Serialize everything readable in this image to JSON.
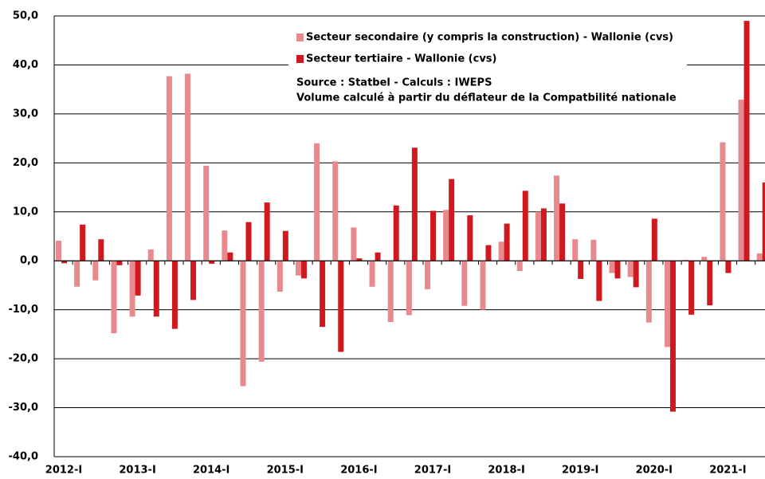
{
  "chart_data": {
    "type": "bar",
    "categories": [
      "2012-I",
      null,
      null,
      null,
      "2013-I",
      null,
      null,
      null,
      "2014-I",
      null,
      null,
      null,
      "2015-I",
      null,
      null,
      null,
      "2016-I",
      null,
      null,
      null,
      "2017-I",
      null,
      null,
      null,
      "2018-I",
      null,
      null,
      null,
      "2019-I",
      null,
      null,
      null,
      "2020-I",
      null,
      null,
      null,
      "2021-I",
      null,
      null
    ],
    "series": [
      {
        "name": "Secteur secondaire (y compris la construction) - Wallonie (cvs)",
        "color": "#e8898d",
        "values": [
          4.1,
          -5.3,
          -4.0,
          -14.8,
          -11.4,
          2.3,
          37.7,
          38.2,
          19.4,
          6.2,
          -25.6,
          -20.6,
          -6.3,
          -3.0,
          24.0,
          20.3,
          6.8,
          -5.3,
          -12.5,
          -11.1,
          -5.8,
          10.4,
          -9.2,
          -10.0,
          3.9,
          -2.1,
          10.0,
          17.4,
          4.4,
          4.3,
          -2.5,
          -3.3,
          -12.6,
          -17.6,
          0.2,
          0.8,
          24.2,
          32.9,
          1.5
        ]
      },
      {
        "name": "Secteur tertiaire - Wallonie (cvs)",
        "color": "#d0191f",
        "values": [
          -0.5,
          7.4,
          4.4,
          -0.9,
          -7.1,
          -11.4,
          -13.9,
          -8.0,
          -0.6,
          1.7,
          7.9,
          11.9,
          6.1,
          -3.6,
          -13.5,
          -18.6,
          0.5,
          1.7,
          11.3,
          23.1,
          10.2,
          16.7,
          9.3,
          3.2,
          7.6,
          14.3,
          10.7,
          11.7,
          -3.7,
          -8.2,
          -3.6,
          -5.4,
          8.6,
          -30.8,
          -11.0,
          -9.1,
          -2.5,
          49.0,
          16.0
        ]
      }
    ],
    "annotations": [
      "Source : Statbel - Calculs : IWEPS",
      "Volume calculé à partir du déflateur de la Compatbilité nationale"
    ],
    "ylim": [
      -40,
      50
    ],
    "yticks": [
      {
        "value": -40,
        "label": "-40,0"
      },
      {
        "value": -30,
        "label": "-30,0"
      },
      {
        "value": -20,
        "label": "-20,0"
      },
      {
        "value": -10,
        "label": "-10,0"
      },
      {
        "value": 0,
        "label": "0,0"
      },
      {
        "value": 10,
        "label": "10,0"
      },
      {
        "value": 20,
        "label": "20,0"
      },
      {
        "value": 30,
        "label": "30,0"
      },
      {
        "value": 40,
        "label": "40,0"
      },
      {
        "value": 50,
        "label": "50,0"
      }
    ],
    "grid": true
  }
}
